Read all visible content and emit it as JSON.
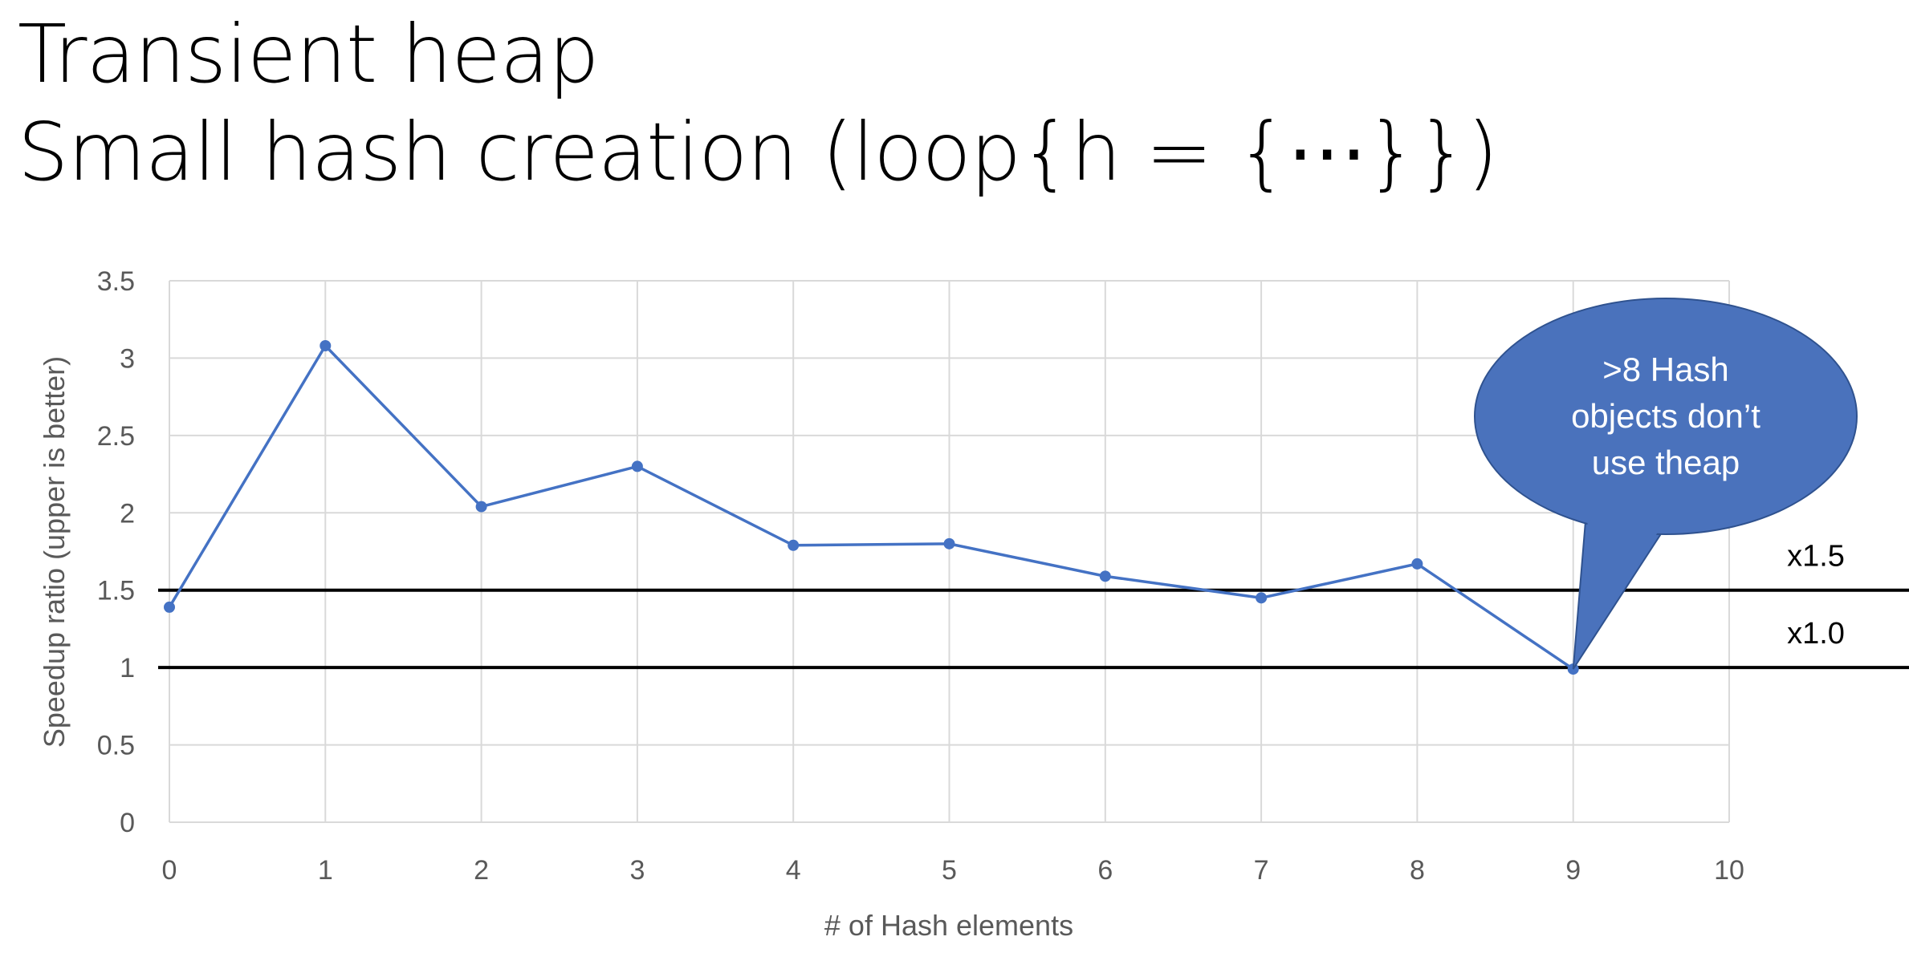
{
  "title": {
    "line1": "Transient heap",
    "line2": "Small hash creation (loop{h = {⋯}})"
  },
  "chart_data": {
    "type": "line",
    "xlabel": "# of Hash elements",
    "ylabel": "Speedup ratio (upper is better)",
    "xlim": [
      0,
      10
    ],
    "ylim": [
      0,
      3.5
    ],
    "x_ticks": [
      "0",
      "1",
      "2",
      "3",
      "4",
      "5",
      "6",
      "7",
      "8",
      "9",
      "10"
    ],
    "y_ticks": [
      "0",
      "0.5",
      "1",
      "1.5",
      "2",
      "2.5",
      "3",
      "3.5"
    ],
    "grid": true,
    "series": [
      {
        "name": "Speedup",
        "color": "#4472C4",
        "x": [
          0,
          1,
          2,
          3,
          4,
          5,
          6,
          7,
          8,
          9
        ],
        "values": [
          1.39,
          3.08,
          2.04,
          2.3,
          1.79,
          1.8,
          1.59,
          1.45,
          1.67,
          0.99
        ]
      }
    ],
    "reference_lines": [
      {
        "y": 1.5,
        "label": "x1.5"
      },
      {
        "y": 1.0,
        "label": "x1.0"
      }
    ],
    "annotation": {
      "lines": [
        ">8 Hash",
        "objects don’t",
        "use theap"
      ],
      "points_to_x": 9,
      "points_to_y": 0.99,
      "fill": "#4A72BC"
    }
  }
}
